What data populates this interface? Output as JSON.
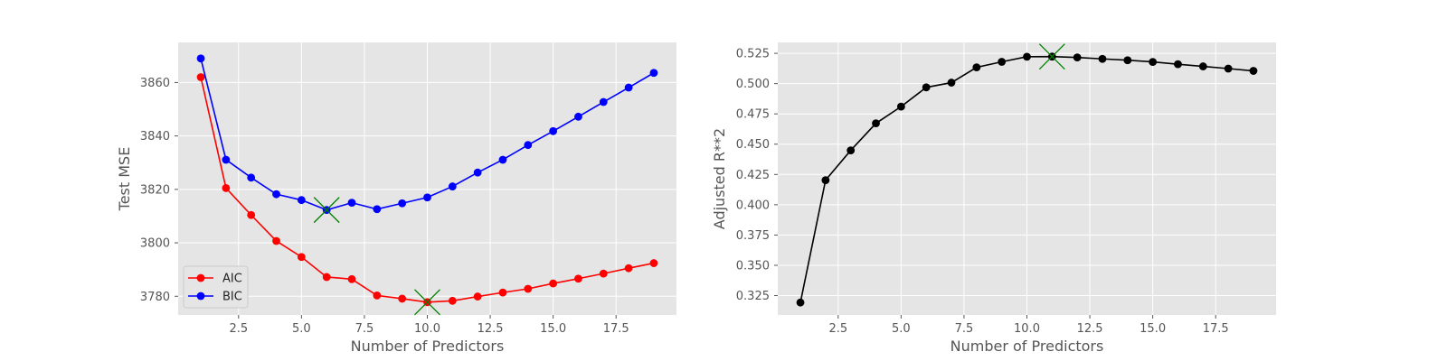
{
  "chart_data": [
    {
      "type": "line",
      "title": "",
      "xlabel": "Number of Predictors",
      "ylabel": "Test MSE",
      "xlim": [
        0.1,
        19.9
      ],
      "ylim": [
        3773,
        3875
      ],
      "xticks": [
        2.5,
        5.0,
        7.5,
        10.0,
        12.5,
        15.0,
        17.5
      ],
      "xtick_labels": [
        "2.5",
        "5.0",
        "7.5",
        "10.0",
        "12.5",
        "15.0",
        "17.5"
      ],
      "yticks": [
        3780,
        3800,
        3820,
        3840,
        3860
      ],
      "ytick_labels": [
        "3780",
        "3800",
        "3820",
        "3840",
        "3860"
      ],
      "grid": true,
      "legend": "lower-left",
      "x": [
        1,
        2,
        3,
        4,
        5,
        6,
        7,
        8,
        9,
        10,
        11,
        12,
        13,
        14,
        15,
        16,
        17,
        18,
        19
      ],
      "series": [
        {
          "name": "AIC",
          "color": "#ff0000",
          "values": [
            3862,
            3820.5,
            3810.4,
            3800.7,
            3794.7,
            3787.2,
            3786.4,
            3780.3,
            3779.1,
            3777.8,
            3778.3,
            3779.9,
            3781.4,
            3782.8,
            3784.8,
            3786.6,
            3788.5,
            3790.5,
            3792.4
          ]
        },
        {
          "name": "BIC",
          "color": "#0000ff",
          "values": [
            3869,
            3831.1,
            3824.4,
            3818.2,
            3816.0,
            3812.3,
            3815.0,
            3812.6,
            3814.8,
            3817.0,
            3821.1,
            3826.3,
            3831.1,
            3836.6,
            3841.8,
            3847.2,
            3852.7,
            3858.1,
            3863.6
          ]
        }
      ],
      "markers": [
        {
          "series": "BIC",
          "x": 6,
          "y": 3812.3,
          "color": "#008000",
          "shape": "x"
        },
        {
          "series": "AIC",
          "x": 10,
          "y": 3777.8,
          "color": "#008000",
          "shape": "x"
        }
      ]
    },
    {
      "type": "line",
      "title": "",
      "xlabel": "Number of Predictors",
      "ylabel": "Adjusted R**2",
      "xlim": [
        0.1,
        19.9
      ],
      "ylim": [
        0.309,
        0.534
      ],
      "xticks": [
        2.5,
        5.0,
        7.5,
        10.0,
        12.5,
        15.0,
        17.5
      ],
      "xtick_labels": [
        "2.5",
        "5.0",
        "7.5",
        "10.0",
        "12.5",
        "15.0",
        "17.5"
      ],
      "yticks": [
        0.325,
        0.35,
        0.375,
        0.4,
        0.425,
        0.45,
        0.475,
        0.5,
        0.525
      ],
      "ytick_labels": [
        "0.325",
        "0.350",
        "0.375",
        "0.400",
        "0.425",
        "0.450",
        "0.475",
        "0.500",
        "0.525"
      ],
      "grid": true,
      "x": [
        1,
        2,
        3,
        4,
        5,
        6,
        7,
        8,
        9,
        10,
        11,
        12,
        13,
        14,
        15,
        16,
        17,
        18,
        19
      ],
      "series": [
        {
          "color": "#000000",
          "values": [
            0.3193,
            0.4203,
            0.4449,
            0.4672,
            0.481,
            0.4969,
            0.5008,
            0.5134,
            0.518,
            0.5222,
            0.5223,
            0.5216,
            0.5204,
            0.5193,
            0.5179,
            0.516,
            0.5142,
            0.5124,
            0.5105
          ]
        }
      ],
      "markers": [
        {
          "x": 11,
          "y": 0.5223,
          "color": "#008000",
          "shape": "x"
        }
      ]
    }
  ]
}
